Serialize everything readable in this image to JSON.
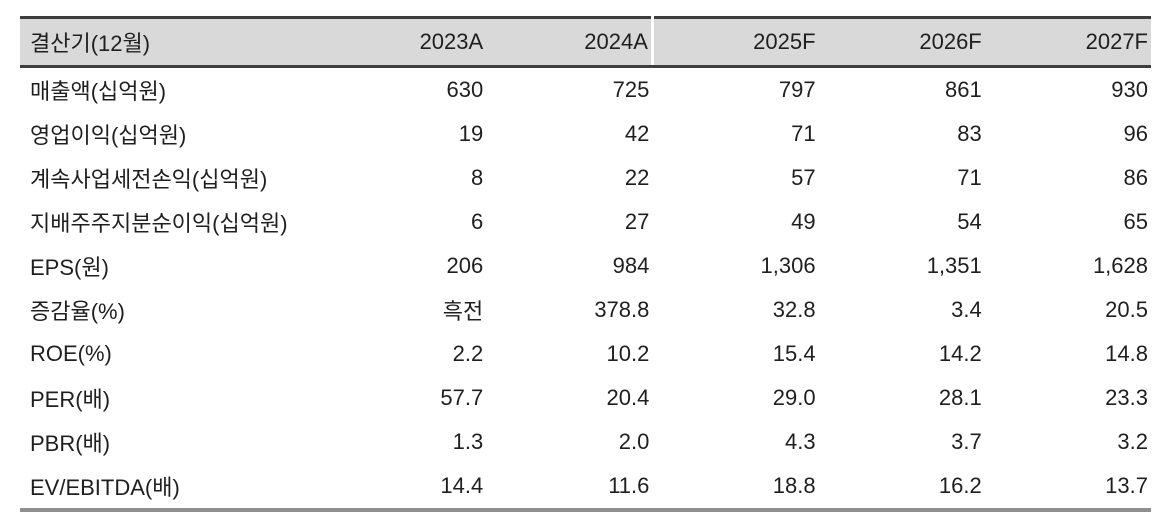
{
  "table": {
    "header": {
      "label": "결산기(12월)",
      "columns": [
        "2023A",
        "2024A",
        "2025F",
        "2026F",
        "2027F"
      ],
      "forecast_divider_after_column": "2024A"
    },
    "rows": [
      {
        "label": "매출액(십억원)",
        "values": [
          "630",
          "725",
          "797",
          "861",
          "930"
        ]
      },
      {
        "label": "영업이익(십억원)",
        "values": [
          "19",
          "42",
          "71",
          "83",
          "96"
        ]
      },
      {
        "label": "계속사업세전손익(십억원)",
        "values": [
          "8",
          "22",
          "57",
          "71",
          "86"
        ]
      },
      {
        "label": "지배주주지분순이익(십억원)",
        "values": [
          "6",
          "27",
          "49",
          "54",
          "65"
        ]
      },
      {
        "label": "EPS(원)",
        "values": [
          "206",
          "984",
          "1,306",
          "1,351",
          "1,628"
        ]
      },
      {
        "label": "증감율(%)",
        "values": [
          "흑전",
          "378.8",
          "32.8",
          "3.4",
          "20.5"
        ]
      },
      {
        "label": "ROE(%)",
        "values": [
          "2.2",
          "10.2",
          "15.4",
          "14.2",
          "14.8"
        ]
      },
      {
        "label": "PER(배)",
        "values": [
          "57.7",
          "20.4",
          "29.0",
          "28.1",
          "23.3"
        ]
      },
      {
        "label": "PBR(배)",
        "values": [
          "1.3",
          "2.0",
          "4.3",
          "3.7",
          "3.2"
        ]
      },
      {
        "label": "EV/EBITDA(배)",
        "values": [
          "14.4",
          "11.6",
          "18.8",
          "16.2",
          "13.7"
        ]
      }
    ],
    "colors": {
      "header_bg": "#d9d9d9",
      "top_border": "#3e3e3e",
      "header_bottom_border": "#3e3e3e",
      "bottom_border": "#8f8f8f",
      "header_divider": "#ffffff",
      "text": "#1f1f1f"
    }
  }
}
